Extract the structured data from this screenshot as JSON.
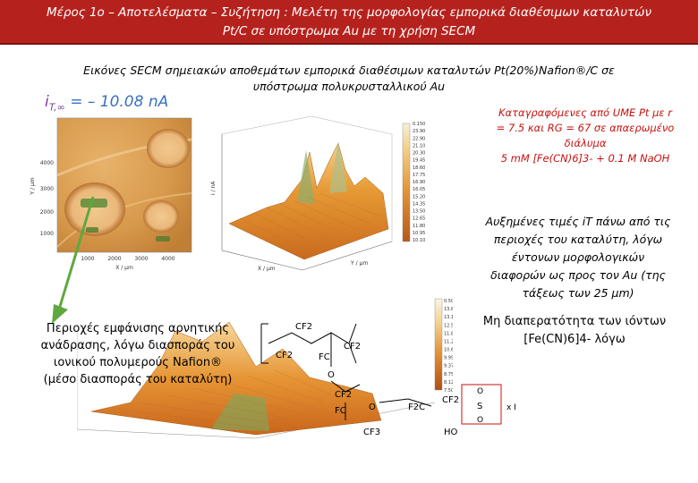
{
  "title": {
    "line1": "Μέρος 1ο – Αποτελέσματα – Συζήτηση : Μελέτη της μορφολογίας εμπορικά διαθέσιμων καταλυτών",
    "line2": "Pt/C σε υπόστρωμα Au με τη χρήση SECM"
  },
  "subtitle": {
    "line1": "Εικόνες SECM σημειακών αποθεμάτων εμπορικά διαθέσιμων καταλυτών Pt(20%)Nafion®/C σε",
    "line2": "υπόστρωμα πολυκρυσταλλικού Au"
  },
  "current": {
    "symbol": "i",
    "subscript": "T,∞",
    "value": "= – 10.08 nA"
  },
  "conditions": {
    "line1": "Καταγραφόμενες από UME Pt με r",
    "line2": "= 7.5 και RG = 67 σε απαερωμένο",
    "line3": "διάλυμα",
    "line4": "5 mM [Fe(CN)6]3- + 0.1 M NaOH"
  },
  "observation": {
    "line1": "Αυξημένες τιμές iT πάνω από τις",
    "line2": "περιοχές του καταλύτη, λόγω",
    "line3": "έντονων μορφολογικών",
    "line4": "διαφορών ως προς τον Au (της",
    "line5": "τάξεως των 25 μm)"
  },
  "impermeability": {
    "line1": "Μη διαπερατότητα των ιόντων",
    "line2": "[Fe(CN)6]4- λόγω"
  },
  "regions": {
    "line1": "Περιοχές εμφάνισης αρνητικής",
    "line2": "ανάδρασης, λόγω διασποράς του",
    "line3": "ιονικού πολυμερούς Nafion®",
    "line4": "(μέσο διασποράς του καταλύτη)"
  },
  "map2d": {
    "yticks": [
      "4000",
      "3000",
      "2000",
      "1000"
    ],
    "xticks": [
      "1000",
      "2000",
      "3000",
      "4000"
    ],
    "xlabel": "X / μm",
    "ylabel": "Y / μm"
  },
  "colorbar1": {
    "ticks": [
      "0.150",
      "23.90",
      "22.90",
      "21.10",
      "20.30",
      "19.45",
      "18.60",
      "17.75",
      "16.90",
      "16.05",
      "15.20",
      "14.35",
      "13.50",
      "12.65",
      "11.80",
      "10.95",
      "10.10"
    ]
  },
  "colorbar2": {
    "ticks": [
      "0.500",
      "13.85",
      "13.15",
      "12.50",
      "11.85",
      "11.25",
      "10.60",
      "9.990",
      "9.370",
      "8.750",
      "8.125",
      "7.500"
    ]
  },
  "plot3d_top": {
    "zlabel": "i / nA",
    "xlabel": "X / μm",
    "ylabel": "Y / μm"
  },
  "nafion": {
    "cf2": "CF2",
    "fc": "FC",
    "cf3": "CF3",
    "f2c": "F2C",
    "oh": "HO",
    "s": "S",
    "o": "O",
    "hydration": "x H2O"
  },
  "colors": {
    "title_bg": "#b5221d",
    "accent_red": "#c4130f",
    "arrow_green": "#5fa83e",
    "surface_orange": "#e79a35",
    "gold": "#d9a85a"
  }
}
